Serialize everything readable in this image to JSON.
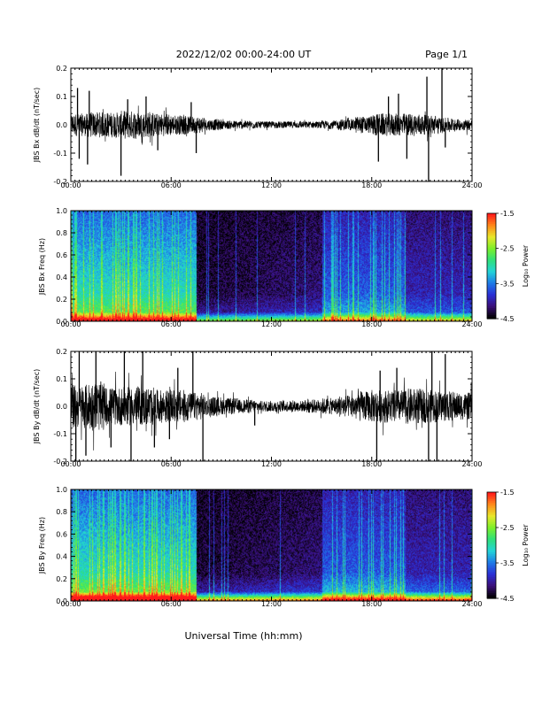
{
  "header": {
    "title": "2022/12/02  00:00-24:00 UT",
    "page": "Page 1/1"
  },
  "xaxis": {
    "label": "Universal Time (hh:mm)",
    "ticks": [
      "00:00",
      "06:00",
      "12:00",
      "18:00",
      "24:00"
    ],
    "range": [
      0,
      24
    ],
    "unit": "hours"
  },
  "colorscale": {
    "label": "Log₁₀ Power",
    "ticks": [
      "-1.5",
      "-2.5",
      "-3.5",
      "-4.5"
    ],
    "range": [
      -4.5,
      -1.5
    ],
    "colors": [
      "#000000",
      "#3b0f7a",
      "#2a2fd6",
      "#1e7be8",
      "#22d3d8",
      "#2fe07a",
      "#7cf02a",
      "#e8e82a",
      "#ff8a1a",
      "#ff1a1a"
    ]
  },
  "chart_data": [
    {
      "type": "line",
      "ylabel": "JBS Bx dB/dt (nT/sec)",
      "ylim": [
        -0.2,
        0.2
      ],
      "yticks": [
        "0.2",
        "0.1",
        "0.0",
        "-0.1",
        "-0.2"
      ],
      "xlim": [
        0,
        24
      ],
      "x_step_hours": 1,
      "noise_amplitude": [
        0.04,
        0.045,
        0.045,
        0.05,
        0.045,
        0.04,
        0.035,
        0.03,
        0.02,
        0.015,
        0.015,
        0.012,
        0.012,
        0.012,
        0.012,
        0.015,
        0.02,
        0.03,
        0.04,
        0.04,
        0.04,
        0.035,
        0.025,
        0.02
      ],
      "spikes": [
        {
          "x": 0.4,
          "y": 0.13
        },
        {
          "x": 0.5,
          "y": -0.12
        },
        {
          "x": 1.0,
          "y": -0.14
        },
        {
          "x": 1.1,
          "y": 0.12
        },
        {
          "x": 3.0,
          "y": -0.18
        },
        {
          "x": 3.4,
          "y": 0.09
        },
        {
          "x": 4.5,
          "y": 0.1
        },
        {
          "x": 5.2,
          "y": -0.09
        },
        {
          "x": 7.5,
          "y": -0.1
        },
        {
          "x": 7.2,
          "y": 0.08
        },
        {
          "x": 18.4,
          "y": -0.13
        },
        {
          "x": 19.0,
          "y": 0.1
        },
        {
          "x": 19.6,
          "y": 0.11
        },
        {
          "x": 20.1,
          "y": -0.12
        },
        {
          "x": 21.3,
          "y": 0.17
        },
        {
          "x": 21.4,
          "y": -0.2
        },
        {
          "x": 22.2,
          "y": 0.2
        },
        {
          "x": 22.4,
          "y": -0.08
        }
      ]
    },
    {
      "type": "heatmap",
      "ylabel": "JBS Bx Freq (Hz)",
      "ylim": [
        0.0,
        1.0
      ],
      "yticks": [
        "1.0",
        "0.8",
        "0.6",
        "0.4",
        "0.2",
        "0.0"
      ],
      "xlim": [
        0,
        24
      ],
      "zlim": [
        -4.5,
        -1.5
      ],
      "colorbar_label": "Log₁₀ Power"
    },
    {
      "type": "line",
      "ylabel": "JBS By dB/dt (nT/sec)",
      "ylim": [
        -0.2,
        0.2
      ],
      "yticks": [
        "0.2",
        "0.1",
        "0.0",
        "-0.1",
        "-0.2"
      ],
      "xlim": [
        0,
        24
      ],
      "x_step_hours": 1,
      "noise_amplitude": [
        0.08,
        0.09,
        0.07,
        0.07,
        0.07,
        0.06,
        0.06,
        0.05,
        0.035,
        0.03,
        0.025,
        0.02,
        0.02,
        0.02,
        0.025,
        0.03,
        0.04,
        0.055,
        0.06,
        0.06,
        0.065,
        0.06,
        0.055,
        0.05
      ],
      "spikes": [
        {
          "x": 0.3,
          "y": -0.2
        },
        {
          "x": 0.5,
          "y": 0.2
        },
        {
          "x": 0.9,
          "y": -0.18
        },
        {
          "x": 1.5,
          "y": 0.2
        },
        {
          "x": 2.4,
          "y": -0.15
        },
        {
          "x": 3.2,
          "y": 0.2
        },
        {
          "x": 3.6,
          "y": -0.2
        },
        {
          "x": 4.3,
          "y": 0.2
        },
        {
          "x": 5.0,
          "y": -0.15
        },
        {
          "x": 5.9,
          "y": -0.12
        },
        {
          "x": 6.4,
          "y": 0.14
        },
        {
          "x": 7.3,
          "y": 0.2
        },
        {
          "x": 7.9,
          "y": -0.2
        },
        {
          "x": 11.0,
          "y": -0.07
        },
        {
          "x": 18.3,
          "y": -0.2
        },
        {
          "x": 18.5,
          "y": 0.13
        },
        {
          "x": 19.5,
          "y": 0.14
        },
        {
          "x": 21.4,
          "y": -0.2
        },
        {
          "x": 21.6,
          "y": 0.2
        },
        {
          "x": 21.9,
          "y": -0.2
        },
        {
          "x": 22.4,
          "y": 0.19
        }
      ]
    },
    {
      "type": "heatmap",
      "ylabel": "JBS By Freq (Hz)",
      "ylim": [
        0.0,
        1.0
      ],
      "yticks": [
        "1.0",
        "0.8",
        "0.6",
        "0.4",
        "0.2",
        "0.0"
      ],
      "xlim": [
        0,
        24
      ],
      "zlim": [
        -4.5,
        -1.5
      ],
      "colorbar_label": "Log₁₀ Power"
    }
  ]
}
